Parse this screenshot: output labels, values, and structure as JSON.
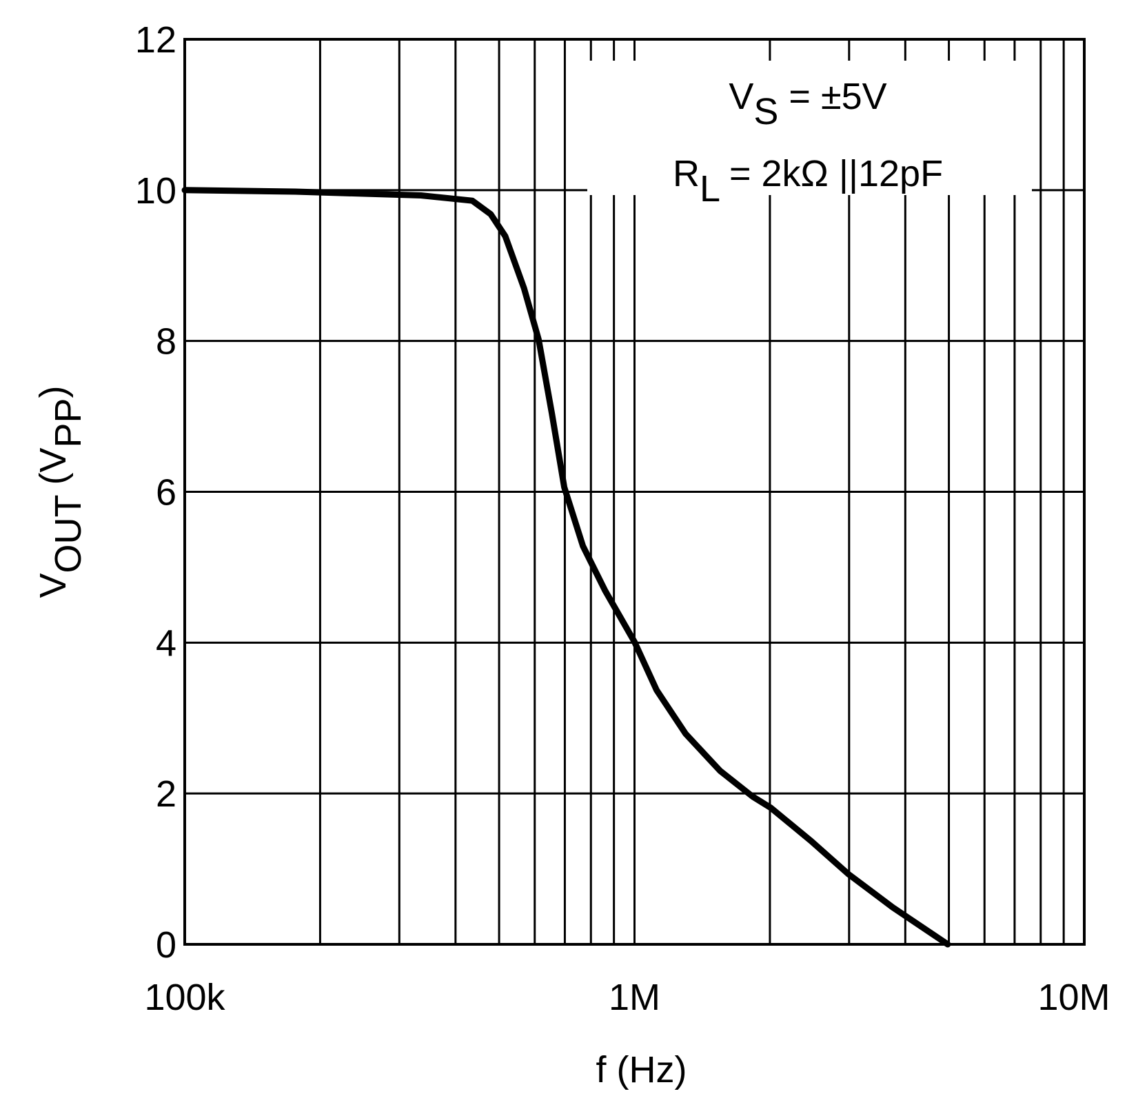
{
  "chart_data": {
    "type": "line",
    "xlabel": "f (Hz)",
    "ylabel": {
      "main": "V",
      "sub": "OUT",
      "mid": " (V",
      "sub2": "PP",
      "end": ")"
    },
    "annotations": [
      {
        "main": "V",
        "sub": "S",
        "rest": " = ±5V"
      },
      {
        "main": "R",
        "sub": "L",
        "rest": " = 2kΩ ||12pF"
      }
    ],
    "xscale": "log",
    "xlim": [
      100000,
      10000000
    ],
    "xticks": [
      {
        "value": 100000,
        "label": "100k"
      },
      {
        "value": 1000000,
        "label": "1M"
      },
      {
        "value": 10000000,
        "label": "10M"
      }
    ],
    "xminor": [
      200000,
      300000,
      400000,
      500000,
      600000,
      700000,
      800000,
      900000,
      2000000,
      3000000,
      4000000,
      5000000,
      6000000,
      7000000,
      8000000,
      9000000
    ],
    "ylim": [
      0,
      12
    ],
    "yticks": [
      0,
      2,
      4,
      6,
      8,
      10,
      12
    ],
    "grid": true,
    "series": [
      {
        "color": "#000000",
        "x": [
          100000,
          176000,
          335000,
          436000,
          479000,
          516000,
          568000,
          612000,
          655000,
          698000,
          768000,
          860000,
          1000000,
          1120000,
          1300000,
          1550000,
          1830000,
          2010000,
          2470000,
          2990000,
          3750000,
          4970000
        ],
        "values": [
          10.0,
          9.98,
          9.93,
          9.86,
          9.68,
          9.39,
          8.7,
          8.02,
          7.04,
          6.06,
          5.28,
          4.69,
          4.01,
          3.37,
          2.79,
          2.3,
          1.96,
          1.81,
          1.37,
          0.93,
          0.49,
          0
        ]
      }
    ]
  }
}
